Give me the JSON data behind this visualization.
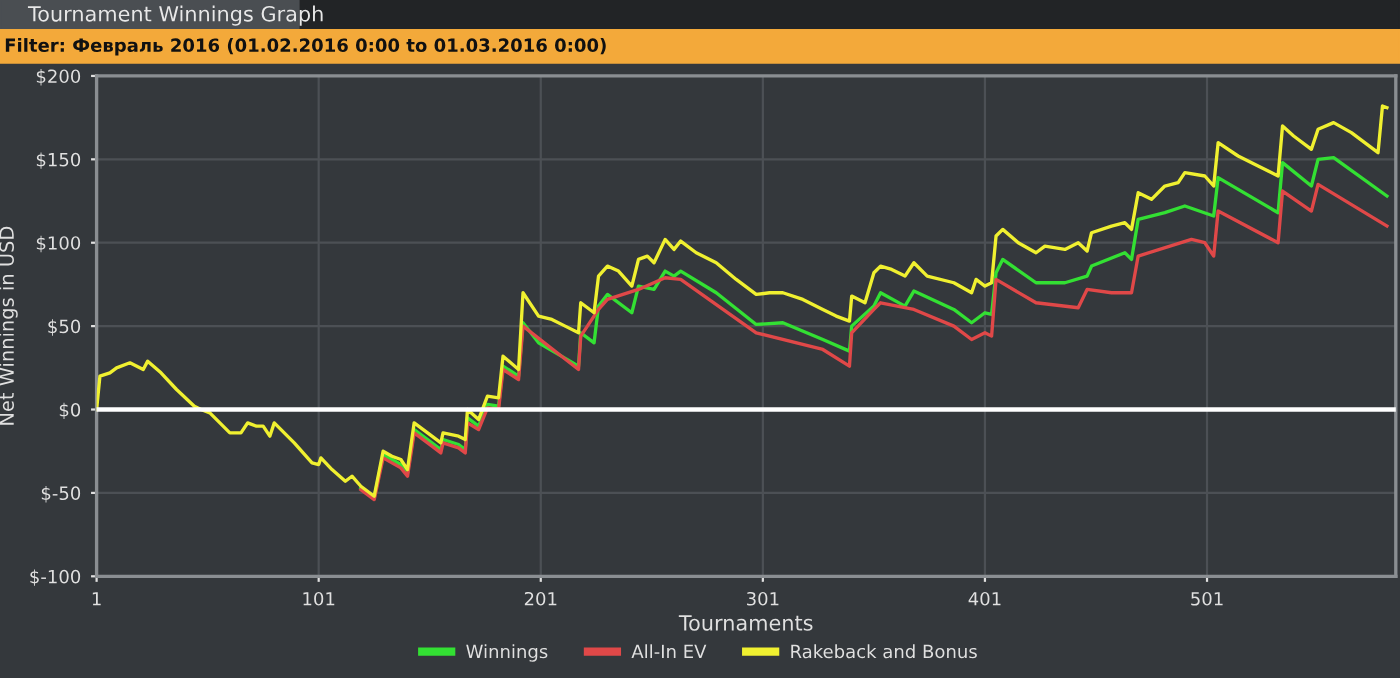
{
  "chart_data": {
    "type": "line",
    "title": "Tournament Winnings Graph",
    "subtitle": "Filter: Февраль 2016 (01.02.2016 0:00 to 01.03.2016 0:00)",
    "xlabel": "Tournaments",
    "ylabel": "Net Winnings in USD",
    "xlim": [
      1,
      586
    ],
    "xticks": [
      1,
      101,
      201,
      301,
      401,
      501
    ],
    "ylim": [
      -100,
      200
    ],
    "yticks": [
      {
        "value": -100,
        "label": "$-100"
      },
      {
        "value": -50,
        "label": "$-50"
      },
      {
        "value": 0,
        "label": "$0"
      },
      {
        "value": 50,
        "label": "$50"
      },
      {
        "value": 100,
        "label": "$100"
      },
      {
        "value": 150,
        "label": "$150"
      },
      {
        "value": 200,
        "label": "$200"
      }
    ],
    "grid": true,
    "legend": "bottom",
    "line_style": "solid",
    "marker": "none",
    "ref_lines": [
      {
        "axis": "y",
        "value": 0,
        "color": "#ffffff"
      }
    ],
    "series": [
      {
        "name": "Winnings",
        "color": "#33e033",
        "x": [
          120,
          126,
          130,
          134,
          138,
          141,
          144,
          152,
          156,
          157,
          164,
          167,
          168,
          173,
          177,
          182,
          184,
          191,
          193,
          200,
          218,
          219,
          225,
          227,
          231,
          242,
          245,
          252,
          257,
          261,
          264,
          280,
          298,
          310,
          328,
          340,
          341,
          351,
          354,
          365,
          369,
          387,
          395,
          401,
          404,
          406,
          409,
          424,
          437,
          447,
          449,
          464,
          467,
          470,
          482,
          491,
          504,
          506,
          533,
          535,
          548,
          551,
          558,
          582
        ],
        "values": [
          -47,
          -53,
          -27,
          -30,
          -33,
          -38,
          -12,
          -20,
          -24,
          -18,
          -21,
          -24,
          -5,
          -10,
          3,
          2,
          26,
          20,
          52,
          40,
          26,
          46,
          40,
          62,
          69,
          58,
          74,
          72,
          83,
          80,
          83,
          70,
          51,
          52,
          42,
          35,
          50,
          62,
          70,
          62,
          71,
          60,
          52,
          58,
          57,
          82,
          90,
          76,
          76,
          80,
          86,
          94,
          90,
          114,
          118,
          122,
          116,
          139,
          118,
          148,
          134,
          150,
          151,
          128
        ]
      },
      {
        "name": "All-In EV",
        "color": "#e04848",
        "x": [
          120,
          126,
          130,
          134,
          138,
          141,
          144,
          152,
          156,
          157,
          164,
          167,
          168,
          173,
          177,
          182,
          184,
          191,
          193,
          218,
          219,
          227,
          231,
          245,
          257,
          264,
          298,
          328,
          340,
          341,
          351,
          354,
          369,
          387,
          395,
          401,
          404,
          406,
          424,
          443,
          447,
          458,
          467,
          470,
          494,
          500,
          504,
          506,
          533,
          535,
          548,
          551,
          582
        ],
        "values": [
          -48,
          -54,
          -29,
          -32,
          -35,
          -40,
          -14,
          -22,
          -26,
          -20,
          -23,
          -26,
          -8,
          -12,
          1,
          0,
          24,
          18,
          50,
          24,
          44,
          60,
          66,
          72,
          79,
          78,
          46,
          36,
          26,
          46,
          60,
          64,
          60,
          50,
          42,
          46,
          44,
          78,
          64,
          61,
          72,
          70,
          70,
          92,
          102,
          100,
          92,
          119,
          100,
          131,
          119,
          135,
          110
        ]
      },
      {
        "name": "Rakeback and Bonus",
        "color": "#f0f030",
        "x": [
          1,
          2.5,
          7,
          10,
          16,
          22,
          24,
          30,
          37,
          45,
          48,
          52,
          61,
          66,
          69,
          73,
          76,
          79,
          81,
          90,
          98,
          101,
          102,
          107,
          113,
          116,
          120,
          126,
          130,
          134,
          138,
          141,
          144,
          152,
          156,
          157,
          164,
          167,
          168,
          173,
          177,
          182,
          184,
          191,
          193,
          200,
          206,
          212,
          218,
          219,
          225,
          227,
          231,
          236,
          242,
          245,
          249,
          252,
          257,
          261,
          264,
          271,
          280,
          289,
          298,
          304,
          310,
          319,
          328,
          334,
          340,
          341,
          347,
          351,
          354,
          359,
          365,
          369,
          375,
          387,
          395,
          397,
          401,
          404,
          406,
          409,
          416,
          424,
          428,
          437,
          443,
          447,
          449,
          458,
          464,
          467,
          470,
          476,
          482,
          488,
          491,
          500,
          504,
          506,
          515,
          524,
          533,
          535,
          540,
          548,
          551,
          558,
          566,
          578,
          580,
          582
        ],
        "values": [
          0,
          20,
          22,
          25,
          28,
          24,
          29,
          22,
          12,
          2,
          0,
          -2,
          -14,
          -14,
          -8,
          -10,
          -10,
          -16,
          -8,
          -20,
          -32,
          -33,
          -29,
          -36,
          -43,
          -40,
          -46,
          -52,
          -25,
          -28,
          -30,
          -36,
          -8,
          -16,
          -20,
          -14,
          -16,
          -18,
          0,
          -6,
          8,
          7,
          32,
          24,
          70,
          56,
          54,
          50,
          46,
          64,
          58,
          80,
          86,
          83,
          74,
          90,
          92,
          88,
          102,
          96,
          101,
          94,
          88,
          78,
          69,
          70,
          70,
          66,
          60,
          56,
          53,
          68,
          64,
          82,
          86,
          84,
          80,
          88,
          80,
          76,
          70,
          78,
          74,
          76,
          104,
          108,
          100,
          94,
          98,
          96,
          100,
          95,
          106,
          110,
          112,
          108,
          130,
          126,
          134,
          136,
          142,
          140,
          134,
          160,
          152,
          146,
          140,
          170,
          164,
          156,
          168,
          172,
          166,
          154,
          182,
          181
        ]
      }
    ]
  }
}
